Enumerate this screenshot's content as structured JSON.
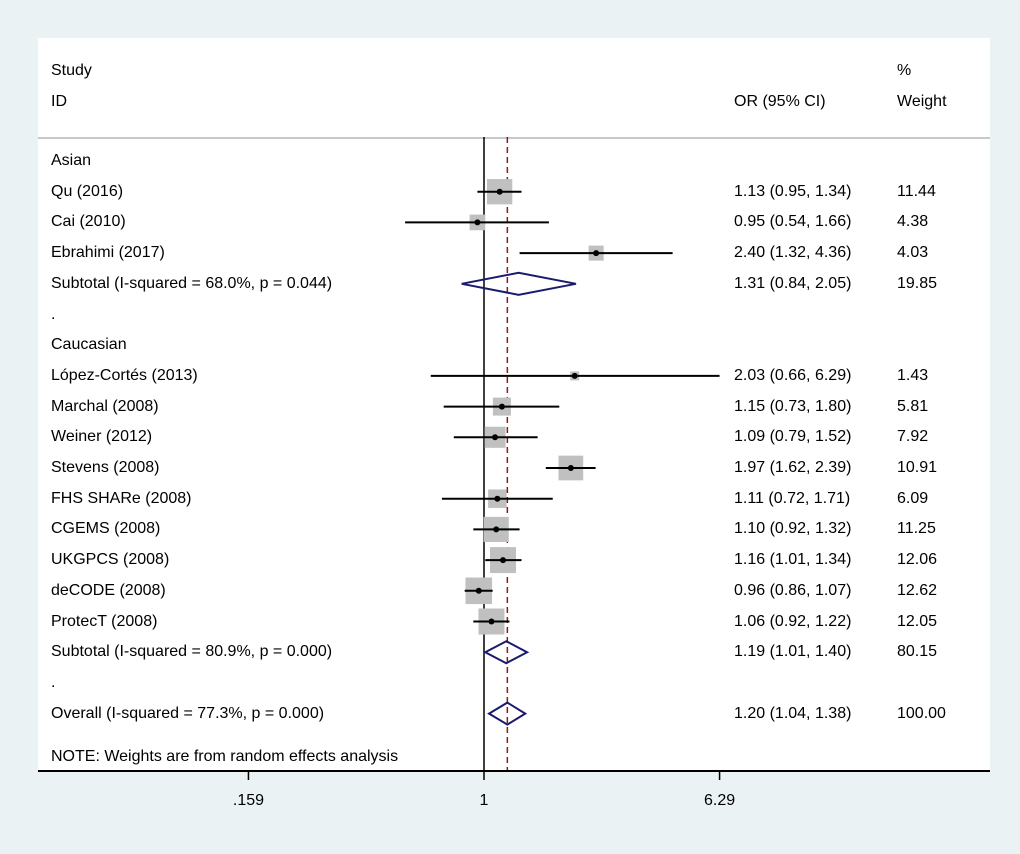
{
  "header": {
    "study_label": "Study",
    "id_label": "ID",
    "or_label": "OR (95% CI)",
    "pct_label": "%",
    "weight_label": "Weight"
  },
  "note": "NOTE: Weights are from random effects analysis",
  "colors": {
    "box": "#c0c0c0",
    "line": "#000000",
    "diamond": "#1a1a6e",
    "ref_line": "#8b1a1a",
    "background": "#eaf2f3",
    "panel": "#ffffff"
  },
  "chart_data": {
    "type": "forest",
    "x_scale": "log",
    "x_ticks": [
      0.159,
      1,
      6.29
    ],
    "x_tick_labels": [
      ".159",
      "1",
      "6.29"
    ],
    "null_line": 1,
    "overall_line": 1.2,
    "rows": [
      {
        "kind": "group",
        "label": "Asian"
      },
      {
        "kind": "study",
        "label": "Qu (2016)",
        "or": 1.13,
        "lo": 0.95,
        "hi": 1.34,
        "est_text": "1.13 (0.95, 1.34)",
        "weight": 11.44,
        "weight_text": "11.44"
      },
      {
        "kind": "study",
        "label": "Cai (2010)",
        "or": 0.95,
        "lo": 0.54,
        "hi": 1.66,
        "est_text": "0.95 (0.54, 1.66)",
        "weight": 4.38,
        "weight_text": "4.38"
      },
      {
        "kind": "study",
        "label": "Ebrahimi (2017)",
        "or": 2.4,
        "lo": 1.32,
        "hi": 4.36,
        "est_text": "2.40 (1.32, 4.36)",
        "weight": 4.03,
        "weight_text": "4.03"
      },
      {
        "kind": "subtotal",
        "label": "Subtotal  (I-squared = 68.0%, p = 0.044)",
        "or": 1.31,
        "lo": 0.84,
        "hi": 2.05,
        "est_text": "1.31 (0.84, 2.05)",
        "weight": 19.85,
        "weight_text": "19.85"
      },
      {
        "kind": "spacer",
        "label": "."
      },
      {
        "kind": "group",
        "label": "Caucasian"
      },
      {
        "kind": "study",
        "label": "López-Cortés (2013)",
        "or": 2.03,
        "lo": 0.66,
        "hi": 6.29,
        "est_text": "2.03 (0.66, 6.29)",
        "weight": 1.43,
        "weight_text": "1.43"
      },
      {
        "kind": "study",
        "label": "Marchal (2008)",
        "or": 1.15,
        "lo": 0.73,
        "hi": 1.8,
        "est_text": "1.15 (0.73, 1.80)",
        "weight": 5.81,
        "weight_text": "5.81"
      },
      {
        "kind": "study",
        "label": "Weiner (2012)",
        "or": 1.09,
        "lo": 0.79,
        "hi": 1.52,
        "est_text": "1.09 (0.79, 1.52)",
        "weight": 7.92,
        "weight_text": "7.92"
      },
      {
        "kind": "study",
        "label": "Stevens (2008)",
        "or": 1.97,
        "lo": 1.62,
        "hi": 2.39,
        "est_text": "1.97 (1.62, 2.39)",
        "weight": 10.91,
        "weight_text": "10.91"
      },
      {
        "kind": "study",
        "label": "FHS SHARe (2008)",
        "or": 1.11,
        "lo": 0.72,
        "hi": 1.71,
        "est_text": "1.11 (0.72, 1.71)",
        "weight": 6.09,
        "weight_text": "6.09"
      },
      {
        "kind": "study",
        "label": "CGEMS (2008)",
        "or": 1.1,
        "lo": 0.92,
        "hi": 1.32,
        "est_text": "1.10 (0.92, 1.32)",
        "weight": 11.25,
        "weight_text": "11.25"
      },
      {
        "kind": "study",
        "label": "UKGPCS (2008)",
        "or": 1.16,
        "lo": 1.01,
        "hi": 1.34,
        "est_text": "1.16 (1.01, 1.34)",
        "weight": 12.06,
        "weight_text": "12.06"
      },
      {
        "kind": "study",
        "label": "deCODE (2008)",
        "or": 0.96,
        "lo": 0.86,
        "hi": 1.07,
        "est_text": "0.96 (0.86, 1.07)",
        "weight": 12.62,
        "weight_text": "12.62"
      },
      {
        "kind": "study",
        "label": "ProtecT (2008)",
        "or": 1.06,
        "lo": 0.92,
        "hi": 1.22,
        "est_text": "1.06 (0.92, 1.22)",
        "weight": 12.05,
        "weight_text": "12.05"
      },
      {
        "kind": "subtotal",
        "label": "Subtotal  (I-squared = 80.9%, p = 0.000)",
        "or": 1.19,
        "lo": 1.01,
        "hi": 1.4,
        "est_text": "1.19 (1.01, 1.40)",
        "weight": 80.15,
        "weight_text": "80.15"
      },
      {
        "kind": "spacer",
        "label": "."
      },
      {
        "kind": "overall",
        "label": "Overall  (I-squared = 77.3%, p = 0.000)",
        "or": 1.2,
        "lo": 1.04,
        "hi": 1.38,
        "est_text": "1.20 (1.04, 1.38)",
        "weight": 100.0,
        "weight_text": "100.00"
      }
    ]
  }
}
